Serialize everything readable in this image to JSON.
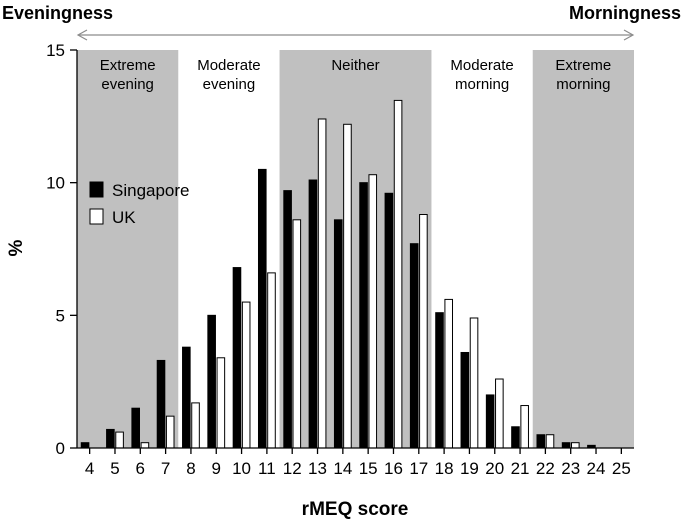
{
  "chart_data": {
    "type": "bar",
    "title": "",
    "xlabel": "rMEQ score",
    "ylabel": "%",
    "ylim": [
      0,
      15
    ],
    "yticks": [
      0,
      5,
      10,
      15
    ],
    "categories": [
      "4",
      "5",
      "6",
      "7",
      "8",
      "9",
      "10",
      "11",
      "12",
      "13",
      "14",
      "15",
      "16",
      "17",
      "18",
      "19",
      "20",
      "21",
      "22",
      "23",
      "24",
      "25"
    ],
    "series": [
      {
        "name": "Singapore",
        "color": "#000000",
        "values": [
          0.2,
          0.7,
          1.5,
          3.3,
          3.8,
          5.0,
          6.8,
          10.5,
          9.7,
          10.1,
          8.6,
          10.0,
          9.6,
          7.7,
          5.1,
          3.6,
          2.0,
          0.8,
          0.5,
          0.2,
          0.1,
          0.0
        ]
      },
      {
        "name": "UK",
        "color": "#ffffff",
        "values": [
          0.0,
          0.6,
          0.2,
          1.2,
          1.7,
          3.4,
          5.5,
          6.6,
          8.6,
          12.4,
          12.2,
          10.3,
          13.1,
          8.8,
          5.6,
          4.9,
          2.6,
          1.6,
          0.5,
          0.2,
          0.0,
          0.0
        ]
      }
    ],
    "regions": [
      {
        "label_lines": [
          "Extreme",
          "evening"
        ],
        "from": "4",
        "to": "7",
        "shaded": true
      },
      {
        "label_lines": [
          "Moderate",
          "evening"
        ],
        "from": "8",
        "to": "11",
        "shaded": false
      },
      {
        "label_lines": [
          "Neither"
        ],
        "from": "12",
        "to": "17",
        "shaded": true
      },
      {
        "label_lines": [
          "Moderate",
          "morning"
        ],
        "from": "18",
        "to": "21",
        "shaded": false
      },
      {
        "label_lines": [
          "Extreme",
          "morning"
        ],
        "from": "22",
        "to": "25",
        "shaded": true
      }
    ],
    "region_shade_color": "#c0c0c0",
    "corner_labels": {
      "left": "Eveningness",
      "right": "Morningness"
    },
    "legend_position": "left",
    "grid": false
  }
}
